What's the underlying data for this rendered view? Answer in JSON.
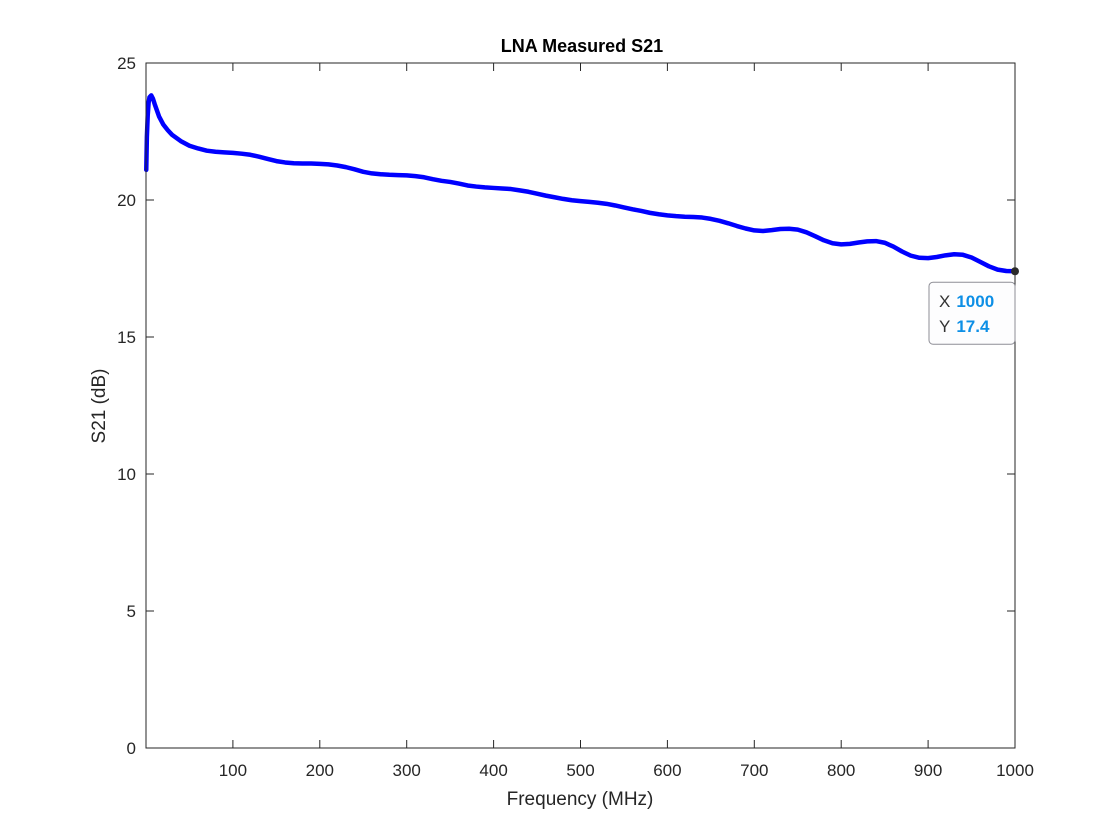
{
  "chart_data": {
    "type": "line",
    "title": "LNA Measured S21",
    "xlabel": "Frequency (MHz)",
    "ylabel": "S21 (dB)",
    "xlim": [
      0,
      1000
    ],
    "ylim": [
      0,
      25
    ],
    "xticks": [
      100,
      200,
      300,
      400,
      500,
      600,
      700,
      800,
      900,
      1000
    ],
    "yticks": [
      0,
      5,
      10,
      15,
      20,
      25
    ],
    "grid": false,
    "box": true,
    "series": [
      {
        "color": "#0000ff",
        "x": [
          0.3,
          1,
          2,
          3,
          4,
          6,
          8,
          10,
          15,
          20,
          25,
          30,
          40,
          50,
          60,
          70,
          80,
          90,
          100,
          110,
          120,
          130,
          140,
          150,
          160,
          170,
          180,
          190,
          200,
          210,
          220,
          230,
          240,
          250,
          260,
          270,
          280,
          290,
          300,
          310,
          320,
          330,
          340,
          350,
          360,
          370,
          380,
          390,
          400,
          410,
          420,
          430,
          440,
          450,
          460,
          470,
          480,
          490,
          500,
          510,
          520,
          530,
          540,
          550,
          560,
          570,
          580,
          590,
          600,
          610,
          620,
          630,
          640,
          650,
          660,
          670,
          680,
          690,
          700,
          710,
          720,
          730,
          740,
          750,
          760,
          770,
          780,
          790,
          800,
          810,
          820,
          830,
          840,
          850,
          860,
          870,
          880,
          890,
          900,
          910,
          920,
          930,
          940,
          950,
          960,
          970,
          980,
          990,
          1000
        ],
        "y": [
          21.1,
          22.3,
          23.1,
          23.55,
          23.75,
          23.82,
          23.7,
          23.5,
          23.05,
          22.75,
          22.55,
          22.38,
          22.15,
          21.98,
          21.88,
          21.8,
          21.76,
          21.74,
          21.72,
          21.69,
          21.65,
          21.58,
          21.5,
          21.42,
          21.37,
          21.34,
          21.33,
          21.33,
          21.32,
          21.3,
          21.26,
          21.2,
          21.12,
          21.03,
          20.97,
          20.94,
          20.92,
          20.91,
          20.9,
          20.87,
          20.83,
          20.76,
          20.7,
          20.66,
          20.6,
          20.53,
          20.49,
          20.46,
          20.44,
          20.42,
          20.4,
          20.35,
          20.3,
          20.23,
          20.16,
          20.1,
          20.04,
          19.99,
          19.96,
          19.93,
          19.9,
          19.86,
          19.8,
          19.73,
          19.66,
          19.6,
          19.53,
          19.48,
          19.44,
          19.41,
          19.39,
          19.38,
          19.36,
          19.31,
          19.24,
          19.15,
          19.05,
          18.96,
          18.89,
          18.87,
          18.9,
          18.94,
          18.95,
          18.92,
          18.82,
          18.68,
          18.53,
          18.42,
          18.38,
          18.4,
          18.45,
          18.49,
          18.5,
          18.44,
          18.3,
          18.12,
          17.97,
          17.89,
          17.88,
          17.92,
          17.98,
          18.02,
          18.0,
          17.9,
          17.74,
          17.58,
          17.46,
          17.41,
          17.4
        ]
      }
    ],
    "datatip": {
      "x_key": "X",
      "x_value": "1000",
      "y_key": "Y",
      "y_value": "17.4",
      "value_color": "#0d8fe6"
    }
  }
}
